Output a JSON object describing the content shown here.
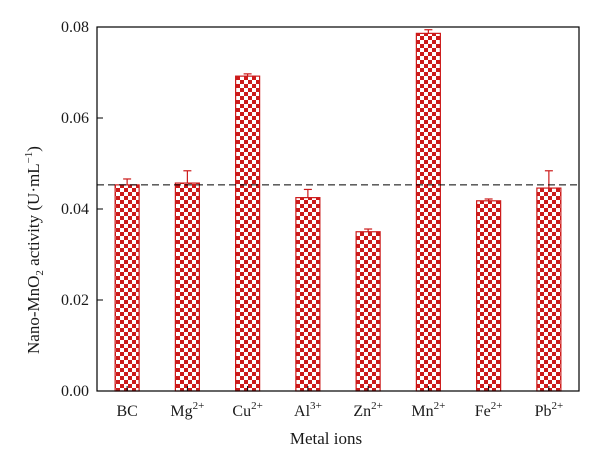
{
  "chart_data": {
    "type": "bar",
    "categories": [
      {
        "base": "BC",
        "sup": ""
      },
      {
        "base": "Mg",
        "sup": "2+"
      },
      {
        "base": "Cu",
        "sup": "2+"
      },
      {
        "base": "Al",
        "sup": "3+"
      },
      {
        "base": "Zn",
        "sup": "2+"
      },
      {
        "base": "Mn",
        "sup": "2+"
      },
      {
        "base": "Fe",
        "sup": "2+"
      },
      {
        "base": "Pb",
        "sup": "2+"
      }
    ],
    "values": [
      0.0453,
      0.0457,
      0.0692,
      0.0425,
      0.035,
      0.0786,
      0.0418,
      0.0446
    ],
    "errors": [
      0.0013,
      0.0027,
      0.0005,
      0.0018,
      0.0006,
      0.0008,
      0.0004,
      0.0038
    ],
    "reference_line": 0.0453,
    "ylim": [
      0,
      0.08
    ],
    "yticks": [
      "0.00",
      "0.02",
      "0.04",
      "0.06",
      "0.08"
    ],
    "xlabel": "Metal ions",
    "ylabel_parts": {
      "a": "Nano-MnO",
      "a_sub": "2",
      "b": " activity (U·mL",
      "b_sup": "−1",
      "c": ")"
    },
    "colors": {
      "bar": "#cc1a1a",
      "bar_alt": "#ffffff",
      "axis": "#000000",
      "refline": "#000000"
    }
  }
}
